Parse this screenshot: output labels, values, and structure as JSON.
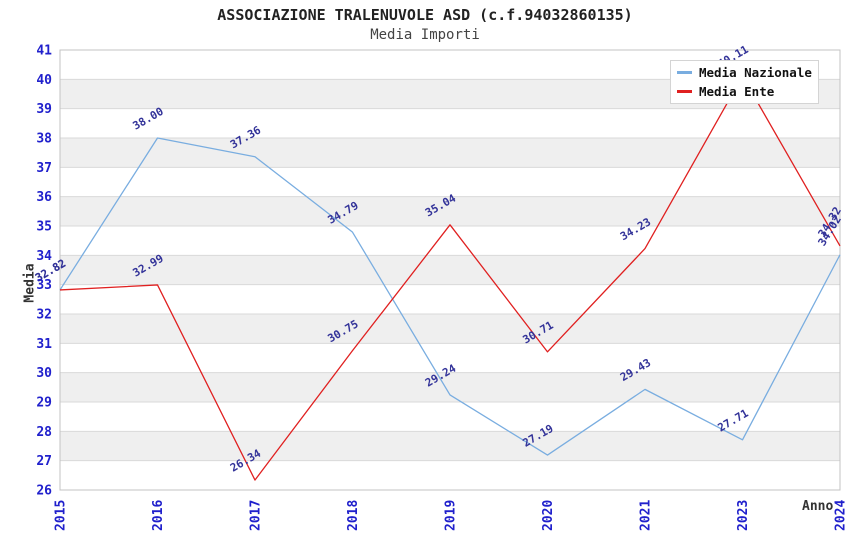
{
  "chart_data": {
    "type": "line",
    "title": "ASSOCIAZIONE TRALENUVOLE ASD (c.f.94032860135)",
    "subtitle": "Media Importi",
    "xlabel": "Anno",
    "ylabel": "Media",
    "categories": [
      "2015",
      "2016",
      "2017",
      "2018",
      "2019",
      "2020",
      "2021",
      "2023",
      "2024"
    ],
    "series": [
      {
        "name": "Media Nazionale",
        "color": "#79ade0",
        "values": [
          32.82,
          38.0,
          37.36,
          34.79,
          29.24,
          27.19,
          29.43,
          27.71,
          34.02
        ]
      },
      {
        "name": "Media Ente",
        "color": "#e02020",
        "values": [
          32.82,
          32.99,
          26.34,
          30.75,
          35.04,
          30.71,
          34.23,
          40.11,
          34.32
        ]
      }
    ],
    "ylim": [
      26,
      41
    ],
    "yticks": [
      26,
      27,
      28,
      29,
      30,
      31,
      32,
      33,
      34,
      35,
      36,
      37,
      38,
      39,
      40,
      41
    ],
    "ytick_step": 1,
    "point_label_decimals": 2,
    "legend": {
      "position": "top-right",
      "entries": [
        "Media Nazionale",
        "Media Ente"
      ]
    },
    "grid": {
      "horizontal": true,
      "vertical": false,
      "alternating_bands": true
    },
    "colors": {
      "tick_label": "#2020cc",
      "point_label": "#333399",
      "band": "#efefef",
      "gridline": "#d9d9d9",
      "plot_border": "#c3c3c3",
      "title": "#222222",
      "subtitle": "#444444",
      "axis_title": "#333333",
      "legend_text": "#111111",
      "background": "#ffffff"
    }
  }
}
